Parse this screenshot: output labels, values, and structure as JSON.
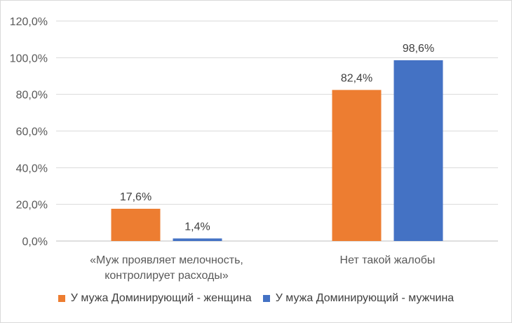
{
  "chart_data": {
    "type": "bar",
    "title": "",
    "xlabel": "",
    "ylabel": "",
    "ylim": [
      0,
      120
    ],
    "yticks": [
      "0,0%",
      "20,0%",
      "40,0%",
      "60,0%",
      "80,0%",
      "100,0%",
      "120,0%"
    ],
    "ytick_values": [
      0,
      20,
      40,
      60,
      80,
      100,
      120
    ],
    "grid": true,
    "legend_position": "bottom",
    "categories": [
      [
        "«Муж проявляет мелочность,",
        "контролирует расходы»"
      ],
      [
        "Нет такой жалобы"
      ]
    ],
    "series": [
      {
        "name": "У мужа Доминирующий - женщина",
        "color": "#ED7D31",
        "values": [
          17.6,
          82.4
        ],
        "labels": [
          "17,6%",
          "82,4%"
        ]
      },
      {
        "name": "У мужа Доминирующий - мужчина",
        "color": "#4472C4",
        "values": [
          1.4,
          98.6
        ],
        "labels": [
          "1,4%",
          "98,6%"
        ]
      }
    ]
  }
}
